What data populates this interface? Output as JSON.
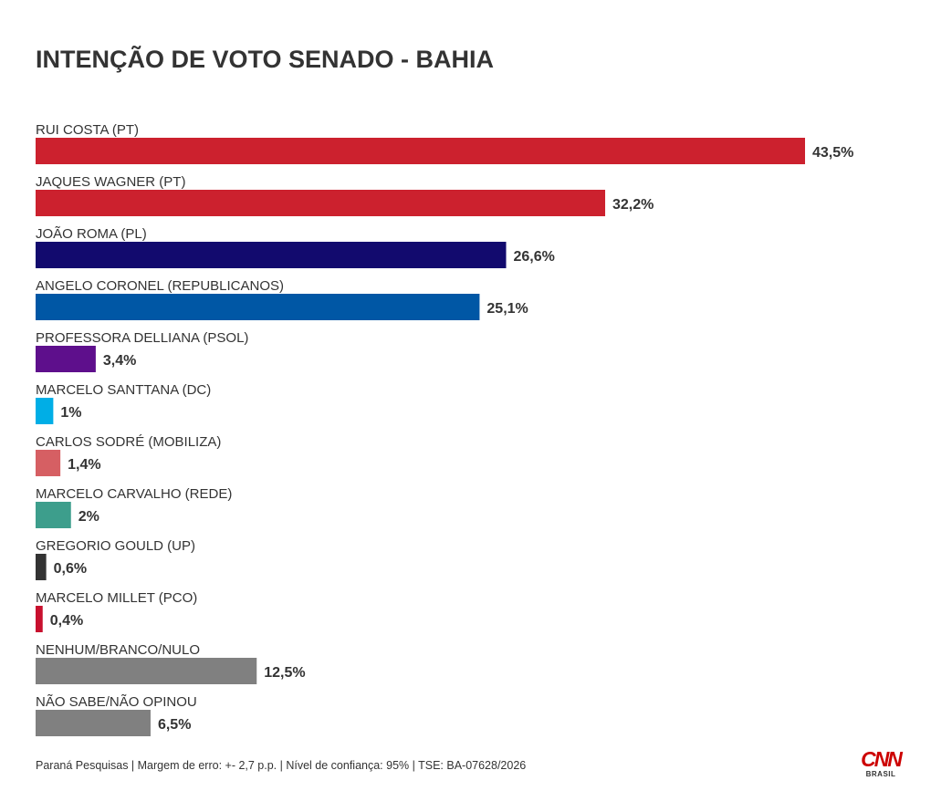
{
  "chart_data": {
    "type": "bar",
    "orientation": "horizontal",
    "title": "INTENÇÃO DE VOTO SENADO - BAHIA",
    "unit": "%",
    "grid": false,
    "legend": "none",
    "xlim": [
      0,
      43.5
    ],
    "categories": [
      "RUI COSTA (PT)",
      "JAQUES WAGNER (PT)",
      "JOÃO ROMA (PL)",
      "ANGELO CORONEL (REPUBLICANOS)",
      "PROFESSORA DELLIANA (PSOL)",
      "MARCELO SANTTANA (DC)",
      "CARLOS SODRÉ (MOBILIZA)",
      "MARCELO CARVALHO (REDE)",
      "GREGORIO GOULD (UP)",
      "MARCELO MILLET (PCO)",
      "NENHUM/BRANCO/NULO",
      "NÃO SABE/NÃO OPINOU"
    ],
    "values": [
      43.5,
      32.2,
      26.6,
      25.1,
      3.4,
      1,
      1.4,
      2,
      0.6,
      0.4,
      12.5,
      6.5
    ],
    "value_labels": [
      "43,5%",
      "32,2%",
      "26,6%",
      "25,1%",
      "3,4%",
      "1%",
      "1,4%",
      "2%",
      "0,6%",
      "0,4%",
      "12,5%",
      "6,5%"
    ],
    "colors": [
      "#cc212e",
      "#cc212e",
      "#120a6e",
      "#0057a5",
      "#5e0f8c",
      "#00aee6",
      "#d65f63",
      "#3d9e8c",
      "#333333",
      "#c8102e",
      "#808080",
      "#808080"
    ]
  },
  "footer": {
    "source": "Paraná Pesquisas | Margem de erro: +- 2,7 p.p. | Nível de confiança: 95% | TSE: BA-07628/2026"
  },
  "logo": {
    "brand": "CNN",
    "sub": "BRASIL"
  }
}
